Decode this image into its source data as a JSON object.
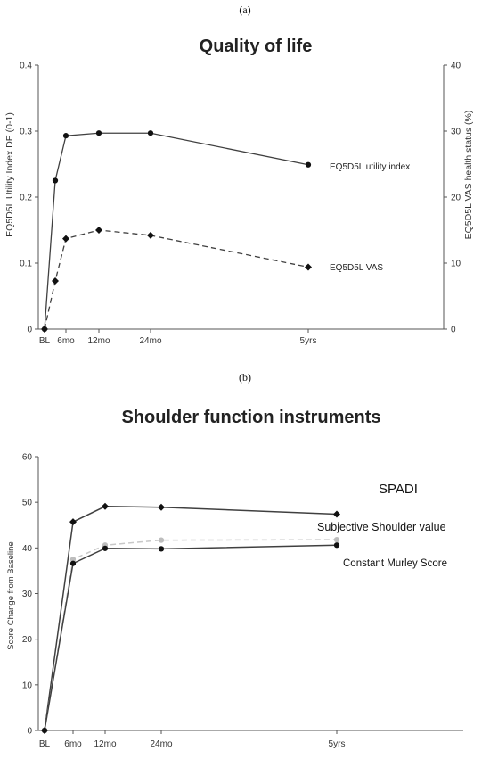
{
  "labels": {
    "panel_a": "(a)",
    "panel_b": "(b)"
  },
  "colors": {
    "axis": "#555555",
    "line_dark": "#404040",
    "line_light": "#c8c8c8"
  },
  "chart_data": [
    {
      "type": "line",
      "title": "Quality of life",
      "x_ticks": [
        "BL",
        "6mo",
        "12mo",
        "24mo",
        "5yrs"
      ],
      "ylabel": "EQ5D5L Utility Index DE (0-1)",
      "ylim": [
        0,
        0.4
      ],
      "y_ticks": [
        "0",
        "0.1",
        "0.2",
        "0.3",
        "0.4"
      ],
      "y2label": "EQ5D5L VAS health status (%)",
      "y2lim": [
        0,
        40
      ],
      "y2_ticks": [
        "0",
        "10",
        "20",
        "30",
        "40"
      ],
      "grid": false,
      "series": [
        {
          "name": "EQ5D5L utility index",
          "axis": "left",
          "style": "solid",
          "marker": "circle",
          "x": [
            0,
            3,
            6,
            12,
            24,
            60
          ],
          "values": [
            0.0,
            0.225,
            0.293,
            0.297,
            0.297,
            0.249
          ]
        },
        {
          "name": "EQ5D5L VAS",
          "axis": "right",
          "style": "dashed",
          "marker": "diamond",
          "x": [
            0,
            3,
            6,
            12,
            24,
            60
          ],
          "values": [
            0,
            7.3,
            13.7,
            15.0,
            14.2,
            9.4
          ]
        }
      ]
    },
    {
      "type": "line",
      "title": "Shoulder function instruments",
      "x_ticks": [
        "BL",
        "6mo",
        "12mo",
        "24mo",
        "5yrs"
      ],
      "ylabel": "Score Change from Baseline",
      "ylim": [
        0,
        60
      ],
      "y_ticks": [
        "0",
        "10",
        "20",
        "30",
        "40",
        "50",
        "60"
      ],
      "grid": false,
      "series": [
        {
          "name": "SPADI",
          "style": "solid",
          "marker": "diamond",
          "color": "dark",
          "x": [
            0,
            6,
            12,
            24,
            60
          ],
          "values": [
            0,
            45.7,
            49.1,
            48.9,
            47.4
          ]
        },
        {
          "name": "Subjective Shoulder value",
          "style": "dashed",
          "marker": "circle",
          "color": "light",
          "x": [
            0,
            6,
            12,
            24,
            60
          ],
          "values": [
            0,
            37.5,
            40.6,
            41.7,
            41.8
          ]
        },
        {
          "name": "Constant Murley Score",
          "style": "solid",
          "marker": "circle",
          "color": "dark",
          "x": [
            0,
            6,
            12,
            24,
            60
          ],
          "values": [
            0,
            36.6,
            39.9,
            39.8,
            40.6
          ]
        }
      ]
    }
  ]
}
